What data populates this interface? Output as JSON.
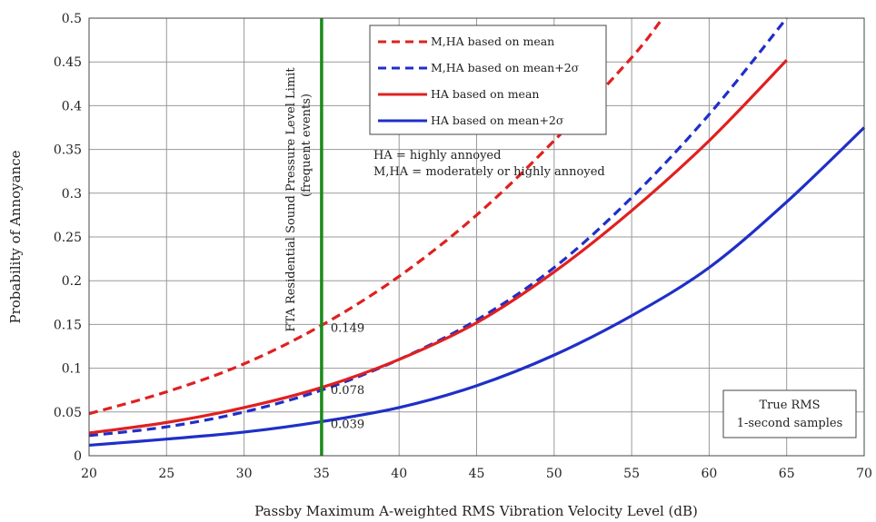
{
  "chart_data": {
    "type": "line",
    "xlabel": "Passby Maximum A-weighted RMS Vibration Velocity Level (dB)",
    "ylabel": "Probability of Annoyance",
    "xlim": [
      20,
      70
    ],
    "ylim": [
      0,
      0.5
    ],
    "x_ticks": [
      "20",
      "25",
      "30",
      "35",
      "40",
      "45",
      "50",
      "55",
      "60",
      "65",
      "70"
    ],
    "y_ticks": [
      "0",
      "0.05",
      "0.1",
      "0.15",
      "0.2",
      "0.25",
      "0.3",
      "0.35",
      "0.4",
      "0.45",
      "0.5"
    ],
    "grid": true,
    "series": [
      {
        "name": "M,HA based on mean",
        "color": "#e02020",
        "dashed": true,
        "x": [
          20,
          25,
          30,
          35,
          40,
          45,
          50,
          55,
          57
        ],
        "y": [
          0.048,
          0.073,
          0.105,
          0.149,
          0.205,
          0.275,
          0.36,
          0.455,
          0.5
        ]
      },
      {
        "name": "M,HA based on mean+2σ",
        "color": "#1f2fc8",
        "dashed": true,
        "x": [
          20,
          25,
          30,
          35,
          40,
          45,
          50,
          55,
          60,
          65
        ],
        "y": [
          0.023,
          0.033,
          0.05,
          0.075,
          0.11,
          0.155,
          0.215,
          0.295,
          0.39,
          0.5
        ]
      },
      {
        "name": "HA based on mean",
        "color": "#e02020",
        "dashed": false,
        "x": [
          20,
          25,
          30,
          35,
          40,
          45,
          50,
          55,
          60,
          65
        ],
        "y": [
          0.026,
          0.038,
          0.055,
          0.078,
          0.11,
          0.152,
          0.21,
          0.28,
          0.36,
          0.452
        ]
      },
      {
        "name": "HA based on mean+2σ",
        "color": "#1f2fc8",
        "dashed": false,
        "x": [
          20,
          25,
          30,
          35,
          40,
          45,
          50,
          55,
          60,
          65,
          70
        ],
        "y": [
          0.012,
          0.019,
          0.027,
          0.039,
          0.055,
          0.08,
          0.115,
          0.16,
          0.215,
          0.29,
          0.375
        ]
      }
    ],
    "vertical_line": {
      "x": 35,
      "color": "#1a8a1a",
      "label_line1": "FTA Residential Sound Pressure Level Limit",
      "label_line2": "(frequent events)"
    },
    "point_labels": [
      {
        "text": "0.149",
        "x": 35,
        "y": 0.149
      },
      {
        "text": "0.078",
        "x": 35,
        "y": 0.078
      },
      {
        "text": "0.039",
        "x": 35,
        "y": 0.039
      }
    ],
    "definitions": [
      "HA = highly annoyed",
      "M,HA = moderately or highly annoyed"
    ],
    "note_box": [
      "True RMS",
      "1-second samples"
    ],
    "legend_position": "top-right"
  }
}
